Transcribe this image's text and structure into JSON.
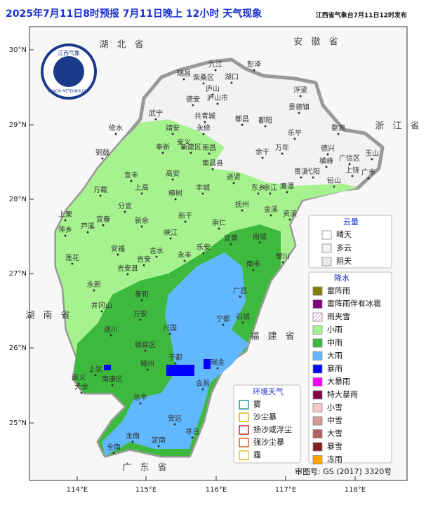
{
  "header": {
    "title": "2025年7月11日8时预报 7月11日晚上 12小时  天气现象",
    "issuer": "江西省气象台7月11日12时发布"
  },
  "logo": {
    "name": "江西气象",
    "english": "JIANGXI METEOROLOGY"
  },
  "axes": {
    "lat": [
      "30°N",
      "29°N",
      "28°N",
      "27°N",
      "26°N",
      "25°N"
    ],
    "lon": [
      "114°E",
      "115°E",
      "116°E",
      "117°E",
      "118°E"
    ]
  },
  "provinces": [
    "湖 北 省",
    "安 徽 省",
    "浙 江 省",
    "湖 南 省",
    "福 建 省",
    "广 东 省"
  ],
  "cities": [
    "瑞昌",
    "柴桑区",
    "湖口",
    "彭泽",
    "庐山",
    "庐山市",
    "德安",
    "都昌",
    "共青城",
    "武宁",
    "修水",
    "永修",
    "鄱阳",
    "景德镇",
    "浮梁",
    "乐平",
    "婺源",
    "铜鼓",
    "靖安",
    "奉新",
    "安义",
    "新建区",
    "南昌",
    "南昌县",
    "余干",
    "万年",
    "德兴",
    "玉山",
    "广信区",
    "上饶",
    "广丰",
    "横峰",
    "弋阳",
    "贵溪",
    "铅山",
    "鹰潭",
    "余江",
    "东乡",
    "进贤",
    "宜丰",
    "高安",
    "上高",
    "丰城",
    "万载",
    "樟树",
    "抚州",
    "金溪",
    "资溪",
    "宜春",
    "分宜",
    "新余",
    "新干",
    "崇仁",
    "萍乡",
    "上栗",
    "芦溪",
    "峡江",
    "宜黄",
    "南城",
    "黎川",
    "莲花",
    "安福",
    "吉水",
    "永丰",
    "乐安",
    "吉安",
    "吉安县",
    "南丰",
    "永新",
    "泰和",
    "广昌",
    "井冈山",
    "万安",
    "宁都",
    "石城",
    "兴国",
    "遂川",
    "赣县区",
    "于都",
    "瑞金",
    "上犹",
    "赣州",
    "崇义",
    "南康区",
    "会昌",
    "大余",
    "信丰",
    "安远",
    "龙南",
    "定南",
    "寻乌",
    "全南",
    "九江"
  ],
  "legend_cloud": {
    "title": "云量",
    "items": [
      {
        "label": "晴天",
        "color": "#ffffff"
      },
      {
        "label": "多云",
        "color": "#f4f4f4"
      },
      {
        "label": "阴天",
        "color": "#e8e8e8"
      }
    ]
  },
  "legend_precip": {
    "title": "降水",
    "items": [
      {
        "label": "雷阵雨",
        "color": "#808000"
      },
      {
        "label": "雷阵雨伴有冰雹",
        "color": "#800080"
      },
      {
        "label": "雨夹雪",
        "color": "#f6c8f6"
      },
      {
        "label": "小雨",
        "color": "#a6f28f"
      },
      {
        "label": "中雨",
        "color": "#3dba3d"
      },
      {
        "label": "大雨",
        "color": "#61b8ff"
      },
      {
        "label": "暴雨",
        "color": "#0000fe"
      },
      {
        "label": "大暴雨",
        "color": "#fa00fa"
      },
      {
        "label": "特大暴雨",
        "color": "#800040"
      },
      {
        "label": "小雪",
        "color": "#f0c8c8"
      },
      {
        "label": "中雪",
        "color": "#d89898"
      },
      {
        "label": "大雪",
        "color": "#b06060"
      },
      {
        "label": "暴雪",
        "color": "#802020"
      },
      {
        "label": "冻雨",
        "color": "#ffa500"
      }
    ]
  },
  "legend_env": {
    "title": "环境天气",
    "items": [
      {
        "label": "雾",
        "color": "#2a9a9a"
      },
      {
        "label": "沙尘暴",
        "color": "#e0b020"
      },
      {
        "label": "扬沙或浮尘",
        "color": "#b03030"
      },
      {
        "label": "强沙尘暴",
        "color": "#e06020"
      },
      {
        "label": "霾",
        "color": "#d8c040"
      }
    ]
  },
  "footer": {
    "approval": "审图号: GS (2017) 3320号"
  }
}
